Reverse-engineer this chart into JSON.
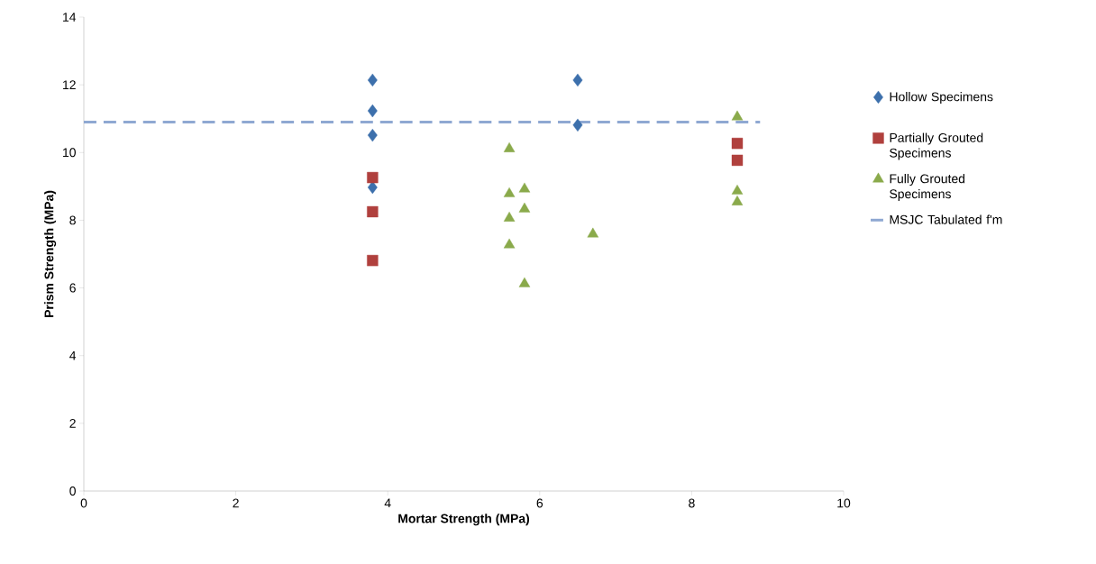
{
  "chart_data": {
    "type": "scatter",
    "xlabel": "Mortar Strength (MPa)",
    "ylabel": "Prism Strength (MPa)",
    "xlim": [
      0,
      10
    ],
    "xticks": [
      0,
      2,
      4,
      6,
      8,
      10
    ],
    "ylim": [
      0,
      14
    ],
    "yticks": [
      0,
      2,
      4,
      6,
      8,
      10,
      12,
      14
    ],
    "grid": false,
    "legend": "right",
    "series": [
      {
        "name": "Hollow Specimens",
        "color": "#3d70ac",
        "marker": "diamond",
        "x": [
          3.8,
          3.8,
          3.8,
          3.8,
          6.5,
          6.5
        ],
        "values": [
          12.14,
          11.23,
          10.51,
          8.97,
          12.14,
          10.81
        ]
      },
      {
        "name": "Partially Grouted Specimens",
        "color": "#b0403d",
        "marker": "square",
        "x": [
          3.8,
          3.8,
          3.8,
          8.6,
          8.6
        ],
        "values": [
          9.26,
          8.25,
          6.81,
          10.27,
          9.77
        ]
      },
      {
        "name": "Fully Grouted Specimens",
        "color": "#8aaa4b",
        "marker": "triangle",
        "x": [
          5.6,
          5.6,
          5.6,
          5.6,
          5.8,
          5.8,
          5.8,
          6.7,
          8.6,
          8.6,
          8.6
        ],
        "values": [
          10.11,
          8.78,
          8.06,
          7.27,
          8.92,
          8.33,
          6.12,
          7.59,
          11.05,
          8.86,
          8.54
        ]
      },
      {
        "name": "MSJC Tabulated f'm",
        "type": "line",
        "color": "#8fa8d2",
        "marker": "none",
        "line_style": "dashed",
        "x": [
          0,
          8.9
        ],
        "values": [
          10.9,
          10.9
        ]
      }
    ]
  }
}
